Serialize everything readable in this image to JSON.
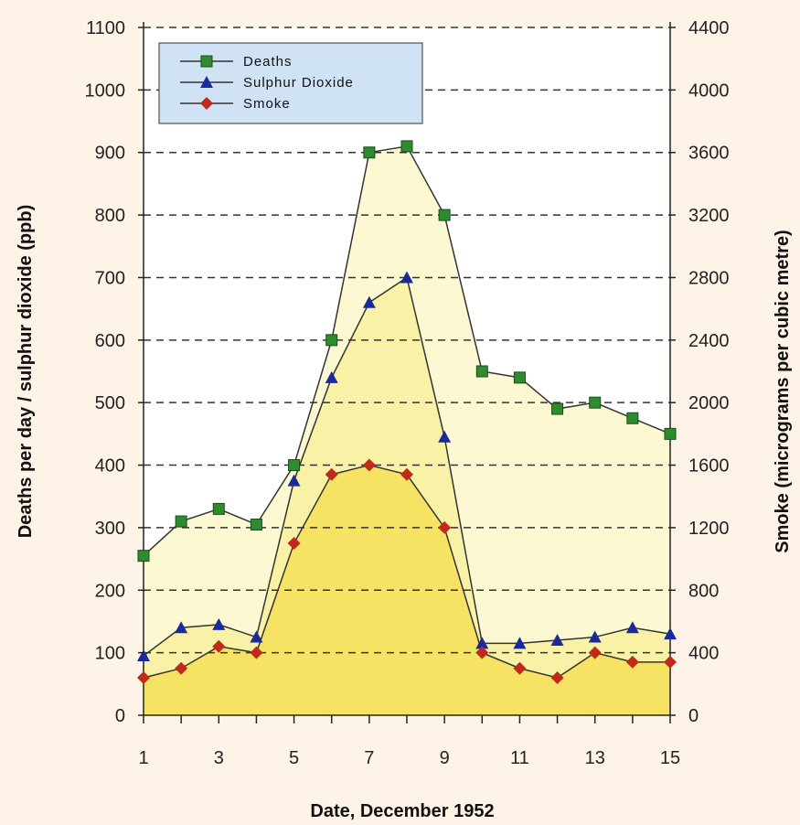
{
  "chart_data": {
    "type": "line",
    "x": [
      1,
      2,
      3,
      4,
      5,
      6,
      7,
      8,
      9,
      10,
      11,
      12,
      13,
      14,
      15
    ],
    "xlabel": "Date, December 1952",
    "ylabel": "Deaths per day / sulphur dioxide (ppb)",
    "y2label": "Smoke (micrograms per cubic metre)",
    "xlim": [
      1,
      15
    ],
    "ylim": [
      0,
      1100
    ],
    "y2lim": [
      0,
      4400
    ],
    "x_ticks": [
      "1",
      "3",
      "5",
      "7",
      "9",
      "11",
      "13",
      "15"
    ],
    "y_ticks": [
      "0",
      "100",
      "200",
      "300",
      "400",
      "500",
      "600",
      "700",
      "800",
      "900",
      "1000",
      "1100"
    ],
    "y2_ticks": [
      "0",
      "400",
      "800",
      "1200",
      "1600",
      "2000",
      "2400",
      "2800",
      "3200",
      "3600",
      "4000",
      "4400"
    ],
    "grid": "horizontal dashed",
    "legend_position": "top-left",
    "series": [
      {
        "name": "Deaths",
        "axis": "left",
        "marker": "square",
        "color": "#2e8b2e",
        "fill": "#fbf8d2",
        "values": [
          255,
          310,
          330,
          305,
          400,
          600,
          900,
          910,
          800,
          550,
          540,
          490,
          500,
          475,
          450
        ]
      },
      {
        "name": "Sulphur Dioxide",
        "axis": "left",
        "marker": "triangle",
        "color": "#1a2a9a",
        "fill": "#f9f1a6",
        "values": [
          95,
          140,
          145,
          125,
          375,
          540,
          660,
          700,
          445,
          115,
          115,
          120,
          125,
          140,
          130
        ]
      },
      {
        "name": "Smoke",
        "axis": "right",
        "marker": "diamond",
        "color": "#c02a1a",
        "fill": "#f7e363",
        "values": [
          240,
          300,
          440,
          400,
          1100,
          1540,
          1600,
          1540,
          1200,
          400,
          300,
          240,
          400,
          340,
          340
        ]
      }
    ]
  }
}
